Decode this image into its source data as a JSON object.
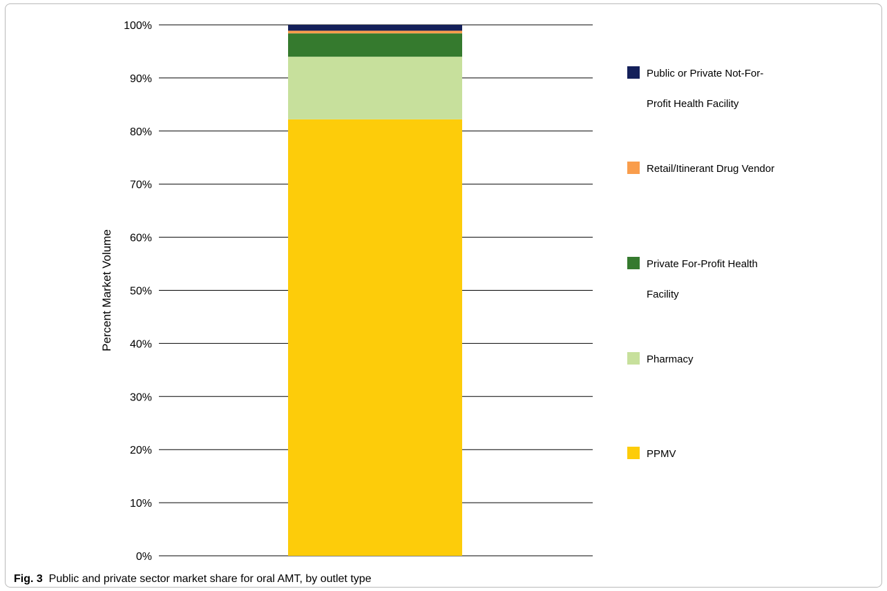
{
  "caption": {
    "label": "Fig. 3",
    "text": "Public and private sector market share for oral AMT, by outlet type"
  },
  "chart_data": {
    "type": "bar",
    "stacked": true,
    "categories": [
      ""
    ],
    "ylabel": "Percent Market Volume",
    "xlabel": "",
    "ylim": [
      0,
      100
    ],
    "yticks": [
      "0%",
      "10%",
      "20%",
      "30%",
      "40%",
      "50%",
      "60%",
      "70%",
      "80%",
      "90%",
      "100%"
    ],
    "grid": true,
    "legend_position": "right",
    "series": [
      {
        "name": "PPMV",
        "values": [
          82.2
        ],
        "color": "#FDCC0A"
      },
      {
        "name": "Pharmacy",
        "values": [
          11.8
        ],
        "color": "#C7E09C"
      },
      {
        "name": "Private For-Profit Health Facility",
        "values": [
          4.4
        ],
        "color": "#357A2E"
      },
      {
        "name": "Retail/Itinerant Drug Vendor",
        "values": [
          0.5
        ],
        "color": "#F99D4C"
      },
      {
        "name": "Public or Private Not-For-Profit Health Facility",
        "values": [
          1.1
        ],
        "color": "#14205A"
      }
    ],
    "legend_order": [
      {
        "lines": [
          "Public or Private Not-For-",
          "Profit Health Facility"
        ],
        "color": "#14205A"
      },
      {
        "lines": [
          "Retail/Itinerant Drug Vendor"
        ],
        "color": "#F99D4C"
      },
      {
        "lines": [
          "Private For-Profit Health",
          "Facility"
        ],
        "color": "#357A2E"
      },
      {
        "lines": [
          "Pharmacy"
        ],
        "color": "#C7E09C"
      },
      {
        "lines": [
          "PPMV"
        ],
        "color": "#FDCC0A"
      }
    ]
  }
}
